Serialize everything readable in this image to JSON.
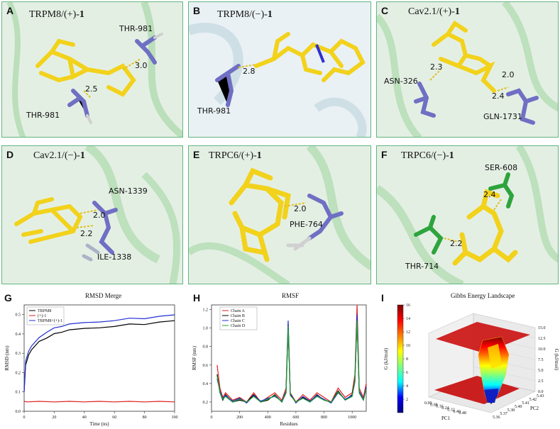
{
  "panels": [
    {
      "letter": "A",
      "title_prefix": "TRPM8/(+)-",
      "title_bold": "1",
      "residues": [
        "THR-981",
        "THR-981"
      ],
      "distances": [
        "3.0",
        "2.5"
      ]
    },
    {
      "letter": "B",
      "title_prefix": "TRPM8/(−)-",
      "title_bold": "1",
      "residues": [
        "THR-981"
      ],
      "distances": [
        "2.8"
      ]
    },
    {
      "letter": "C",
      "title_prefix": "Cav2.1/(+)-",
      "title_bold": "1",
      "residues": [
        "ASN-326",
        "GLN-1731"
      ],
      "distances": [
        "2.3",
        "2.0",
        "2.4"
      ]
    },
    {
      "letter": "D",
      "title_prefix": "Cav2.1/(−)-",
      "title_bold": "1",
      "residues": [
        "ASN-1339",
        "ILE-1338"
      ],
      "distances": [
        "2.0",
        "2.2"
      ]
    },
    {
      "letter": "E",
      "title_prefix": "TRPC6/(+)-",
      "title_bold": "1",
      "residues": [
        "PHE-764"
      ],
      "distances": [
        "2.0"
      ]
    },
    {
      "letter": "F",
      "title_prefix": "TRPC6/(−)-",
      "title_bold": "1",
      "residues": [
        "SER-608",
        "THR-714"
      ],
      "distances": [
        "2.4",
        "2.2"
      ]
    }
  ],
  "graph_letters": {
    "g": "G",
    "h": "H",
    "i": "I"
  },
  "colors": {
    "frame": "#63b47e",
    "ligand": "#f2d21b",
    "residue": "#6f6fc4",
    "hbond": "#e0c020",
    "protein": "#7cc47c"
  },
  "chart_data": [
    {
      "type": "line",
      "title": "RMSD Merge",
      "xlabel": "Time (ns)",
      "ylabel": "RMSD (nm)",
      "xlim": [
        0,
        100
      ],
      "ylim": [
        0,
        0.55
      ],
      "xticks": [
        0,
        20,
        40,
        60,
        80,
        100
      ],
      "yticks": [
        0.0,
        0.1,
        0.2,
        0.3,
        0.4,
        0.5
      ],
      "series": [
        {
          "name": "TRPM8",
          "color": "#000000",
          "x": [
            0,
            1,
            3,
            5,
            10,
            15,
            20,
            25,
            30,
            40,
            50,
            60,
            70,
            80,
            90,
            100
          ],
          "y": [
            0.1,
            0.24,
            0.29,
            0.32,
            0.36,
            0.38,
            0.4,
            0.41,
            0.42,
            0.43,
            0.43,
            0.44,
            0.45,
            0.45,
            0.46,
            0.47
          ]
        },
        {
          "name": "(+)-1",
          "color": "#e02020",
          "x": [
            0,
            2,
            10,
            20,
            30,
            40,
            50,
            60,
            70,
            80,
            90,
            100
          ],
          "y": [
            0.05,
            0.05,
            0.05,
            0.05,
            0.05,
            0.05,
            0.05,
            0.05,
            0.05,
            0.05,
            0.05,
            0.05
          ]
        },
        {
          "name": "TRPM8+(+)-1",
          "color": "#2030d0",
          "x": [
            0,
            1,
            3,
            5,
            10,
            15,
            20,
            25,
            30,
            40,
            50,
            60,
            70,
            80,
            90,
            100
          ],
          "y": [
            0.1,
            0.26,
            0.31,
            0.34,
            0.38,
            0.41,
            0.43,
            0.44,
            0.45,
            0.46,
            0.46,
            0.47,
            0.48,
            0.48,
            0.49,
            0.5
          ]
        }
      ]
    },
    {
      "type": "line",
      "title": "RMSF",
      "xlabel": "Residues",
      "ylabel": "RMSF (nm)",
      "xlim": [
        0,
        1100
      ],
      "ylim": [
        0.1,
        1.25
      ],
      "xticks": [
        0,
        200,
        400,
        600,
        800,
        1000
      ],
      "yticks": [
        0.2,
        0.4,
        0.6,
        0.8,
        1.0,
        1.2
      ],
      "series": [
        {
          "name": "Chain A",
          "color": "#e02020",
          "x": [
            40,
            60,
            80,
            100,
            150,
            200,
            250,
            300,
            350,
            400,
            450,
            500,
            530,
            545,
            560,
            600,
            650,
            700,
            750,
            800,
            850,
            900,
            950,
            1000,
            1020,
            1035,
            1050,
            1080,
            1100
          ],
          "y": [
            0.6,
            0.35,
            0.25,
            0.3,
            0.22,
            0.25,
            0.2,
            0.3,
            0.2,
            0.25,
            0.3,
            0.22,
            0.35,
            1.05,
            0.3,
            0.2,
            0.28,
            0.22,
            0.3,
            0.25,
            0.2,
            0.35,
            0.25,
            0.3,
            0.5,
            1.25,
            0.35,
            0.25,
            0.4
          ]
        },
        {
          "name": "Chain B",
          "color": "#000000",
          "x": [
            40,
            60,
            80,
            100,
            150,
            200,
            250,
            300,
            350,
            400,
            450,
            500,
            530,
            545,
            560,
            600,
            650,
            700,
            750,
            800,
            850,
            900,
            950,
            1000,
            1020,
            1035,
            1050,
            1080,
            1100
          ],
          "y": [
            0.5,
            0.3,
            0.22,
            0.28,
            0.2,
            0.22,
            0.2,
            0.28,
            0.2,
            0.22,
            0.28,
            0.2,
            0.3,
            1.0,
            0.28,
            0.2,
            0.25,
            0.2,
            0.28,
            0.22,
            0.2,
            0.32,
            0.22,
            0.28,
            0.45,
            1.1,
            0.3,
            0.22,
            0.35
          ]
        },
        {
          "name": "Chain C",
          "color": "#2030d0",
          "x": [
            40,
            60,
            80,
            100,
            150,
            200,
            250,
            300,
            350,
            400,
            450,
            500,
            530,
            545,
            560,
            600,
            650,
            700,
            750,
            800,
            850,
            900,
            950,
            1000,
            1020,
            1035,
            1050,
            1080,
            1100
          ],
          "y": [
            0.45,
            0.32,
            0.24,
            0.27,
            0.21,
            0.24,
            0.19,
            0.27,
            0.21,
            0.24,
            0.26,
            0.21,
            0.32,
            1.08,
            0.29,
            0.19,
            0.26,
            0.21,
            0.27,
            0.23,
            0.19,
            0.3,
            0.23,
            0.27,
            0.42,
            1.15,
            0.32,
            0.23,
            0.36
          ]
        },
        {
          "name": "Chain D",
          "color": "#20a030",
          "x": [
            40,
            60,
            80,
            100,
            150,
            200,
            250,
            300,
            350,
            400,
            450,
            500,
            530,
            545,
            560,
            600,
            650,
            700,
            750,
            800,
            850,
            900,
            950,
            1000,
            1020,
            1035,
            1050,
            1080,
            1100
          ],
          "y": [
            0.48,
            0.3,
            0.23,
            0.26,
            0.2,
            0.23,
            0.2,
            0.26,
            0.2,
            0.23,
            0.27,
            0.2,
            0.31,
            1.02,
            0.27,
            0.2,
            0.24,
            0.2,
            0.26,
            0.22,
            0.2,
            0.31,
            0.22,
            0.26,
            0.44,
            1.08,
            0.3,
            0.22,
            0.34
          ]
        }
      ]
    },
    {
      "type": "surface3d",
      "title": "Gibbs Energy Landscape",
      "colorbar_label": "G (kJ/mol)",
      "colorbar_range": [
        0,
        16
      ],
      "colorbar_ticks": [
        2,
        4,
        6,
        8,
        10,
        12,
        14,
        16
      ],
      "zlabel": "G (kJ/mol)",
      "zticks": [
        "0.0",
        "2.5",
        "5.0",
        "7.5",
        "10.0",
        "12.5",
        "15.0"
      ],
      "pc1_label": "PC1",
      "pc1_ticks": [
        "0.00",
        "0.08",
        "0.16",
        "0.24",
        "0.32",
        "0.40",
        "0.48"
      ],
      "pc2_label": "PC2",
      "pc2_ticks": [
        "5.36",
        "5.37",
        "5.38",
        "5.40",
        "5.41",
        "5.42",
        "5.43"
      ]
    }
  ]
}
